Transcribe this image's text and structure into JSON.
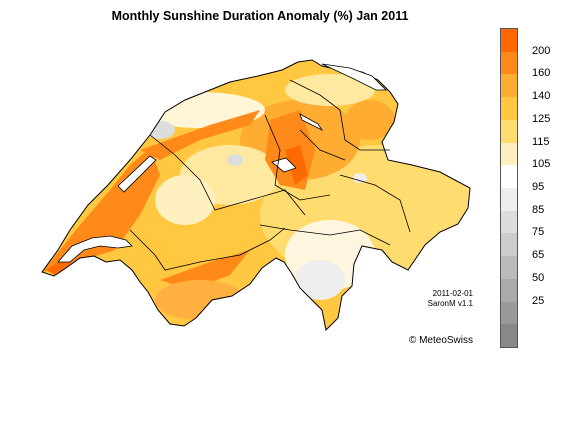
{
  "title": "Monthly Sunshine Duration Anomaly (%) Jan 2011",
  "legend": {
    "colors": [
      "#ff6a00",
      "#ff8a1a",
      "#ffac33",
      "#ffc840",
      "#ffdc70",
      "#fff0c0",
      "#ffffff",
      "#eeeeee",
      "#dddddd",
      "#cccccc",
      "#bbbbbb",
      "#aaaaaa",
      "#999999",
      "#888888"
    ],
    "ticks": [
      "200",
      "160",
      "140",
      "125",
      "115",
      "105",
      "95",
      "85",
      "75",
      "65",
      "50",
      "25"
    ]
  },
  "credits": {
    "date": "2011-02-01",
    "version": "SaronM v1.1",
    "copyright": "© MeteoSwiss"
  }
}
